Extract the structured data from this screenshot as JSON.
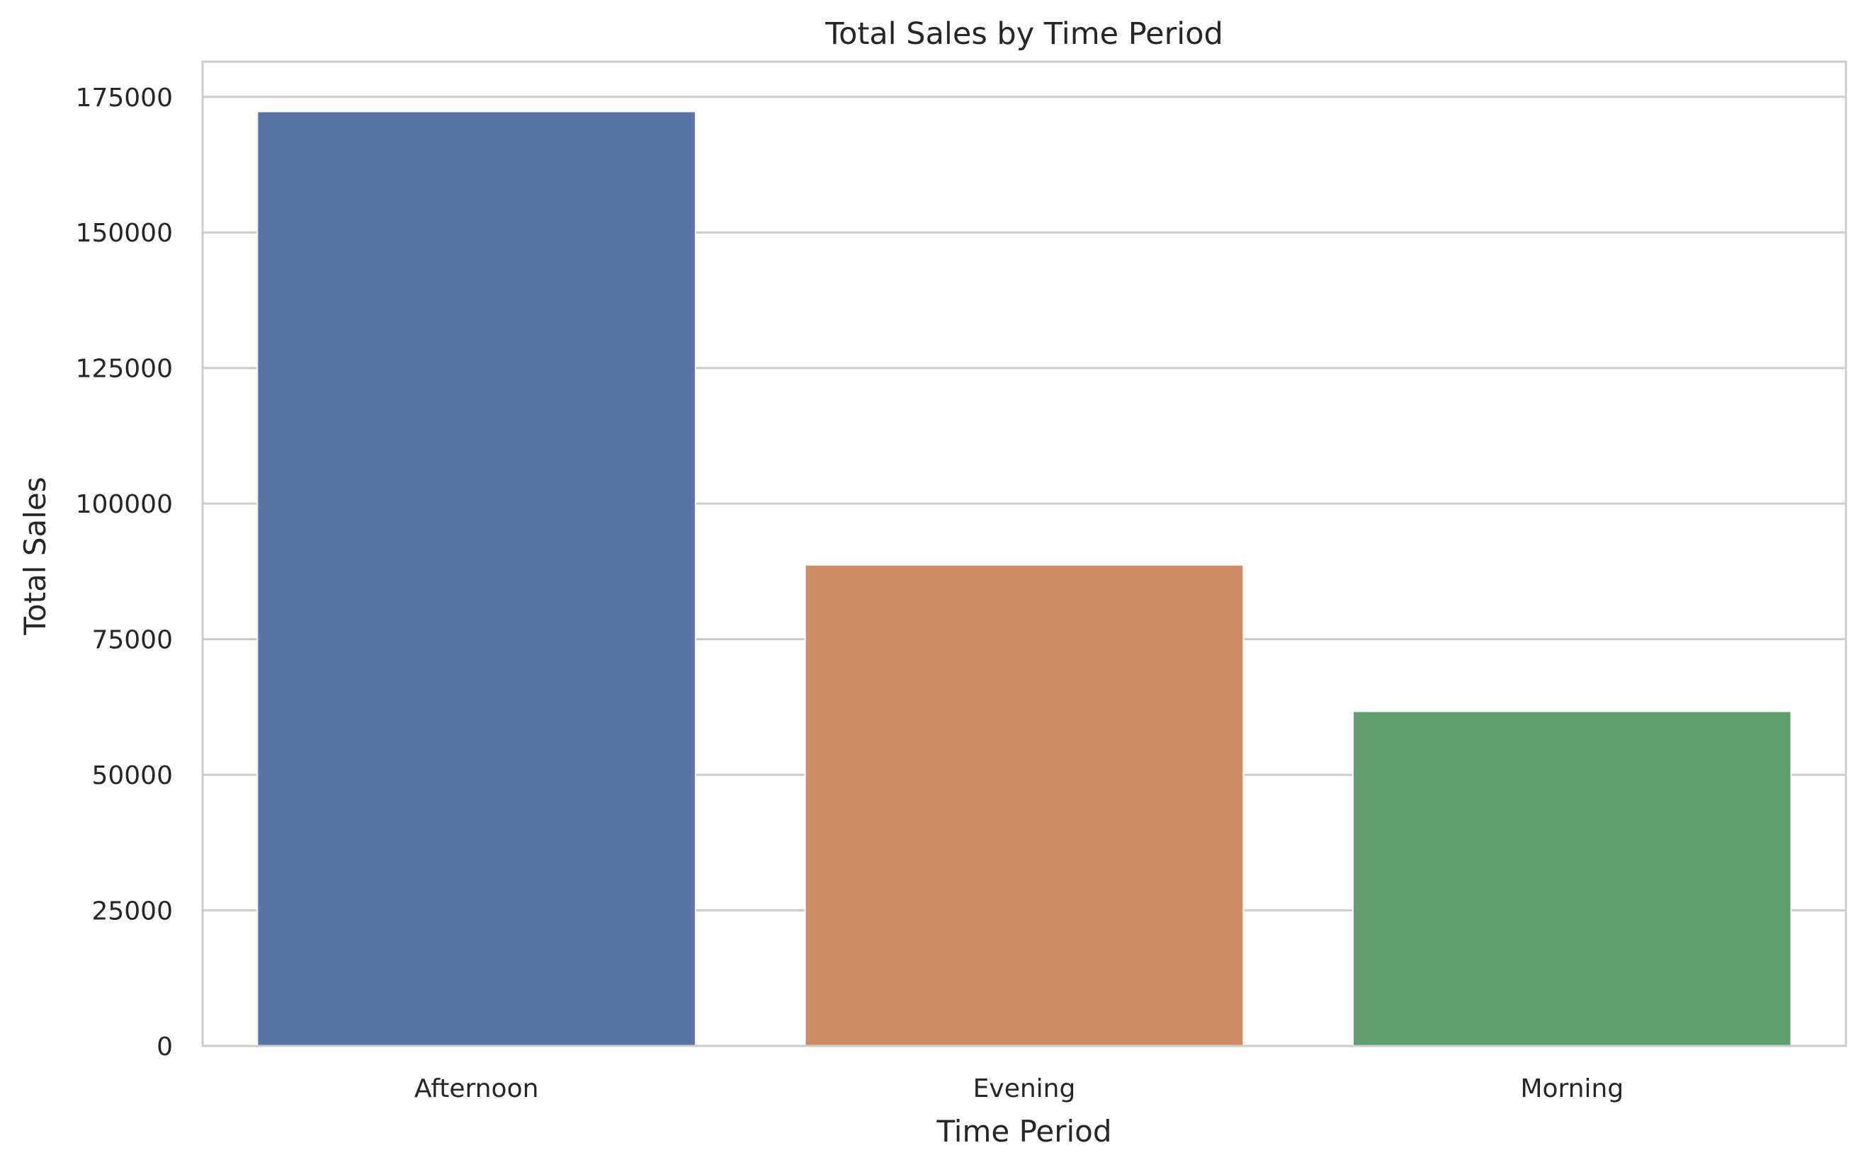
{
  "chart_data": {
    "type": "bar",
    "title": "Total Sales by Time Period",
    "xlabel": "Time Period",
    "ylabel": "Total Sales",
    "categories": [
      "Afternoon",
      "Evening",
      "Morning"
    ],
    "values": [
      172300,
      88700,
      61700
    ],
    "colors": [
      "#5975a4",
      "#cc8963",
      "#5f9e6e"
    ],
    "ylim": [
      0,
      181500
    ],
    "yticks": [
      0,
      25000,
      50000,
      75000,
      100000,
      125000,
      150000,
      175000
    ],
    "grid": "horizontal",
    "legend": "none"
  }
}
